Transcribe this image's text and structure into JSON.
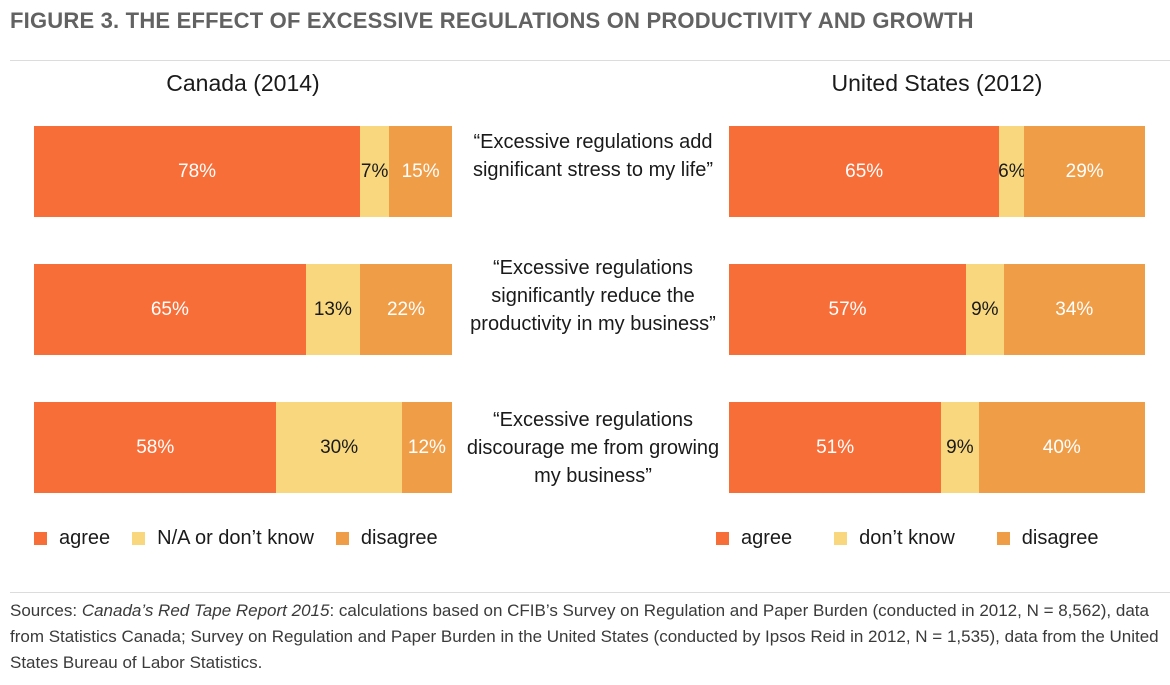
{
  "figure_title": "FIGURE 3. THE EFFECT OF EXCESSIVE REGULATIONS ON PRODUCTIVITY AND GROWTH",
  "colors": {
    "agree": "#f76e38",
    "na": "#f9d77e",
    "disagree": "#f09d48"
  },
  "chart_data": [
    {
      "type": "bar",
      "orientation": "horizontal-stacked",
      "title": "Canada (2014)",
      "categories": [
        "“Excessive regulations add significant stress to my life”",
        "“Excessive regulations significantly reduce the productivity in my business”",
        "“Excessive regulations discourage me from growing my business”"
      ],
      "series": [
        {
          "name": "agree",
          "values": [
            78,
            65,
            58
          ],
          "labels": [
            "78%",
            "65%",
            "58%"
          ]
        },
        {
          "name": "N/A or don’t know",
          "values": [
            7,
            13,
            30
          ],
          "labels": [
            "7%",
            "13%",
            "30%"
          ]
        },
        {
          "name": "disagree",
          "values": [
            15,
            22,
            12
          ],
          "labels": [
            "15%",
            "22%",
            "12%"
          ]
        }
      ],
      "xlim": [
        0,
        100
      ],
      "legend": "bottom-left"
    },
    {
      "type": "bar",
      "orientation": "horizontal-stacked",
      "title": "United States (2012)",
      "categories": [
        "“Excessive regulations add significant stress to my life”",
        "“Excessive regulations significantly reduce the productivity in my business”",
        "“Excessive regulations discourage me from growing my business”"
      ],
      "series": [
        {
          "name": "agree",
          "values": [
            65,
            57,
            51
          ],
          "labels": [
            "65%",
            "57%",
            "51%"
          ]
        },
        {
          "name": "don’t know",
          "values": [
            6,
            9,
            9
          ],
          "labels": [
            "6%",
            "9%",
            "9%"
          ]
        },
        {
          "name": "disagree",
          "values": [
            29,
            34,
            40
          ],
          "labels": [
            "29%",
            "34%",
            "40%"
          ]
        }
      ],
      "xlim": [
        0,
        100
      ],
      "legend": "bottom-right"
    }
  ],
  "statements": [
    "“Excessive regulations add significant stress to my life”",
    "“Excessive regulations significantly reduce the productivity in my business”",
    "“Excessive regulations discourage me from growing my business”"
  ],
  "legend_canada": [
    "agree",
    "N/A or don’t know",
    "disagree"
  ],
  "legend_us": [
    "agree",
    "don’t know",
    "disagree"
  ],
  "sources": {
    "prefix": "Sources: ",
    "report_title": "Canada’s Red Tape Report 2015",
    "text": ": calculations based on CFIB’s Survey on Regulation and Paper Burden (con­ducted in 2012, N = 8,562), data from Statistics Canada; Survey on Regulation and Paper Burden in the United States (conducted by Ipsos Reid in 2012, N = 1,535), data from the United States Bureau of Labor Statistics."
  }
}
